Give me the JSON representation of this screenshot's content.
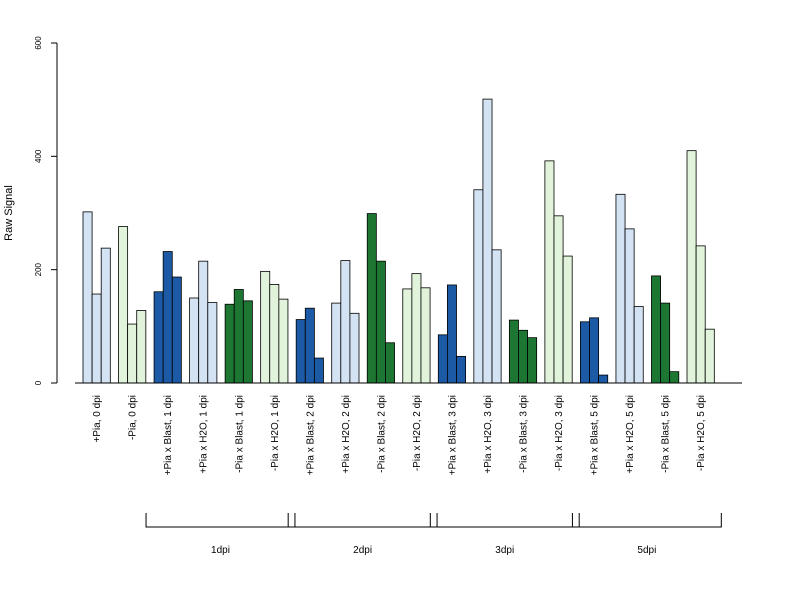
{
  "chart_data": {
    "type": "bar",
    "ylabel": "Raw Signal",
    "ylim": [
      0,
      600
    ],
    "yticks": [
      0,
      200,
      400,
      600
    ],
    "grid": false,
    "legend": "none",
    "colors": {
      "plus_pia_blast": "#1c5aa6",
      "plus_pia_other": "#d3e3f4",
      "minus_pia_blast": "#1d7733",
      "minus_pia_other": "#e1f4db",
      "outline": "#000000"
    },
    "categories": [
      {
        "label": "+Pia, 0 dpi",
        "color": "plus_pia_other",
        "values": [
          302,
          157,
          238
        ]
      },
      {
        "label": "-Pia, 0 dpi",
        "color": "minus_pia_other",
        "values": [
          276,
          104,
          128
        ]
      },
      {
        "label": "+Pia x Blast, 1 dpi",
        "color": "plus_pia_blast",
        "values": [
          161,
          232,
          187
        ]
      },
      {
        "label": "+Pia x H2O, 1 dpi",
        "color": "plus_pia_other",
        "values": [
          150,
          215,
          142
        ]
      },
      {
        "label": "-Pia x Blast, 1 dpi",
        "color": "minus_pia_blast",
        "values": [
          139,
          165,
          145
        ]
      },
      {
        "label": "-Pia x H2O, 1 dpi",
        "color": "minus_pia_other",
        "values": [
          197,
          174,
          148
        ]
      },
      {
        "label": "+Pia x Blast, 2 dpi",
        "color": "plus_pia_blast",
        "values": [
          112,
          132,
          44
        ]
      },
      {
        "label": "+Pia x H2O, 2 dpi",
        "color": "plus_pia_other",
        "values": [
          141,
          216,
          123
        ]
      },
      {
        "label": "-Pia x Blast, 2 dpi",
        "color": "minus_pia_blast",
        "values": [
          299,
          215,
          71
        ]
      },
      {
        "label": "-Pia x H2O, 2 dpi",
        "color": "minus_pia_other",
        "values": [
          166,
          193,
          168
        ]
      },
      {
        "label": "+Pia x Blast, 3 dpi",
        "color": "plus_pia_blast",
        "values": [
          85,
          173,
          47
        ]
      },
      {
        "label": "+Pia x H2O, 3 dpi",
        "color": "plus_pia_other",
        "values": [
          341,
          501,
          235
        ]
      },
      {
        "label": "-Pia x Blast, 3 dpi",
        "color": "minus_pia_blast",
        "values": [
          111,
          93,
          80
        ]
      },
      {
        "label": "-Pia x H2O, 3 dpi",
        "color": "minus_pia_other",
        "values": [
          392,
          295,
          224
        ]
      },
      {
        "label": "+Pia x Blast, 5 dpi",
        "color": "plus_pia_blast",
        "values": [
          108,
          115,
          14
        ]
      },
      {
        "label": "+Pia x H2O, 5 dpi",
        "color": "plus_pia_other",
        "values": [
          333,
          272,
          135
        ]
      },
      {
        "label": "-Pia x Blast, 5 dpi",
        "color": "minus_pia_blast",
        "values": [
          189,
          141,
          20
        ]
      },
      {
        "label": "-Pia x H2O, 5 dpi",
        "color": "minus_pia_other",
        "values": [
          410,
          242,
          95
        ]
      }
    ],
    "groups": [
      {
        "label": "1dpi",
        "from": 2,
        "to": 5
      },
      {
        "label": "2dpi",
        "from": 6,
        "to": 9
      },
      {
        "label": "3dpi",
        "from": 10,
        "to": 13
      },
      {
        "label": "5dpi",
        "from": 14,
        "to": 17
      }
    ]
  }
}
